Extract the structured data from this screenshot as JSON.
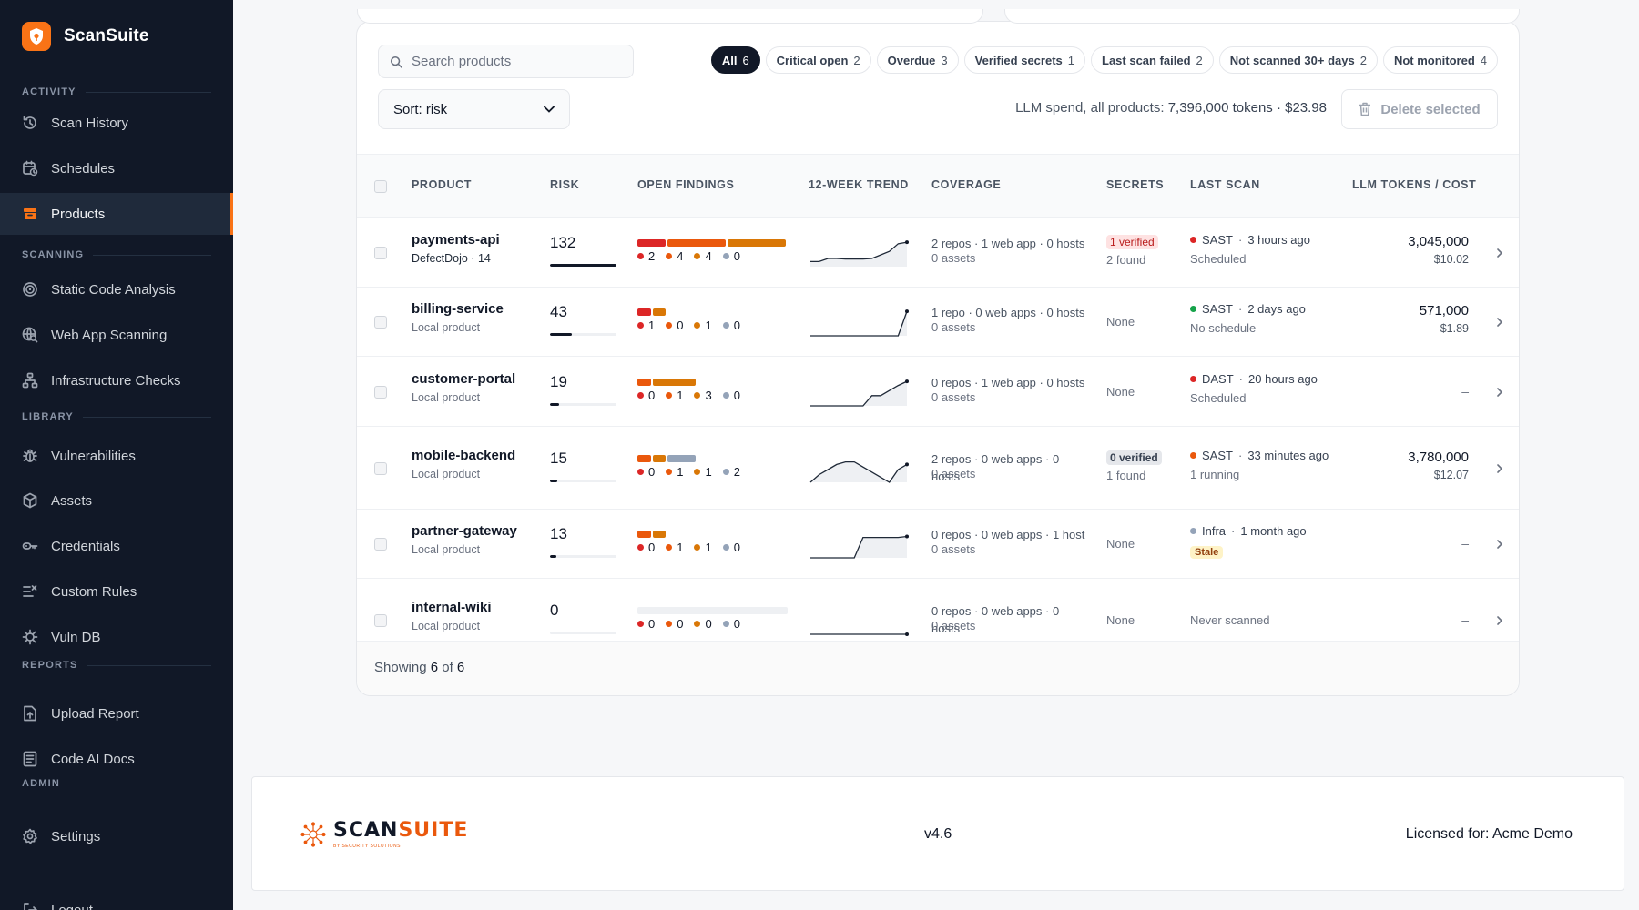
{
  "app": {
    "name": "ScanSuite",
    "accent": "#f97316"
  },
  "sidebar": {
    "sections": [
      {
        "label": "ACTIVITY"
      },
      {
        "label": "SCANNING"
      },
      {
        "label": "LIBRARY"
      },
      {
        "label": "REPORTS"
      },
      {
        "label": "ADMIN"
      }
    ],
    "items": [
      {
        "label": "Scan History",
        "icon": "history-icon"
      },
      {
        "label": "Schedules",
        "icon": "calendar-clock-icon"
      },
      {
        "label": "Products",
        "icon": "archive-box-icon",
        "active": true
      },
      {
        "label": "Static Code Analysis",
        "icon": "target-icon"
      },
      {
        "label": "Web App Scanning",
        "icon": "globe-search-icon"
      },
      {
        "label": "Infrastructure Checks",
        "icon": "network-icon"
      },
      {
        "label": "Vulnerabilities",
        "icon": "bug-icon"
      },
      {
        "label": "Assets",
        "icon": "cube-icon"
      },
      {
        "label": "Credentials",
        "icon": "key-icon"
      },
      {
        "label": "Custom Rules",
        "icon": "list-check-icon"
      },
      {
        "label": "Vuln DB",
        "icon": "bug-database-icon"
      },
      {
        "label": "Upload Report",
        "icon": "file-upload-icon"
      },
      {
        "label": "Code AI Docs",
        "icon": "document-icon"
      },
      {
        "label": "Settings",
        "icon": "gear-icon"
      },
      {
        "label": "Logout",
        "icon": "logout-icon"
      }
    ]
  },
  "toolbar": {
    "search_placeholder": "Search products",
    "sort_label": "Sort: risk",
    "filters": [
      {
        "label": "All",
        "count": "6",
        "active": true
      },
      {
        "label": "Critical open",
        "count": "2"
      },
      {
        "label": "Overdue",
        "count": "3"
      },
      {
        "label": "Verified secrets",
        "count": "1"
      },
      {
        "label": "Last scan failed",
        "count": "2"
      },
      {
        "label": "Not scanned 30+ days",
        "count": "2"
      },
      {
        "label": "Not monitored",
        "count": "4"
      }
    ],
    "spend_label": "LLM spend, all products:",
    "spend_value": "7,396,000 tokens · $23.98",
    "delete_label": "Delete selected"
  },
  "table": {
    "columns": [
      "PRODUCT",
      "RISK",
      "OPEN FINDINGS",
      "12-WEEK TREND",
      "COVERAGE",
      "SECRETS",
      "LAST SCAN",
      "LLM TOKENS / COST"
    ],
    "severity_colors": {
      "critical": "#dc2626",
      "high": "#ea580c",
      "medium": "#d97706",
      "low": "#94a3b8"
    },
    "rows": [
      {
        "name": "payments-api",
        "source": "DefectDojo · 14",
        "risk": "132",
        "risk_fraction": 1.0,
        "findings": {
          "critical": "2",
          "high": "4",
          "medium": "4",
          "low": "0"
        },
        "trend": [
          1,
          1,
          1.6,
          1.6,
          1.5,
          1.5,
          1.5,
          1.6,
          2.3,
          3,
          4.5,
          4.8
        ],
        "coverage": "2 repos · 1 web app · 0 hosts",
        "assets": "0 assets",
        "secrets_badge": "1 verified",
        "secrets_tone": "critical",
        "secrets_sub": "2 found",
        "scan_type": "SAST",
        "scan_time": "3 hours ago",
        "scan_status_color": "#dc2626",
        "scan_sub": "Scheduled",
        "tokens": "3,045,000",
        "cost": "$10.02"
      },
      {
        "name": "billing-service",
        "source": "Local product",
        "risk": "43",
        "risk_fraction": 0.33,
        "findings": {
          "critical": "1",
          "high": "0",
          "medium": "1",
          "low": "0"
        },
        "trend": [
          0,
          0,
          0,
          0,
          0,
          0,
          0,
          0,
          0,
          0,
          0,
          4.8
        ],
        "coverage": "1 repo · 0 web apps · 0 hosts",
        "assets": "0 assets",
        "secrets_none": "None",
        "scan_type": "SAST",
        "scan_time": "2 days ago",
        "scan_status_color": "#16a34a",
        "scan_sub": "No schedule",
        "tokens": "571,000",
        "cost": "$1.89"
      },
      {
        "name": "customer-portal",
        "source": "Local product",
        "risk": "19",
        "risk_fraction": 0.14,
        "findings": {
          "critical": "0",
          "high": "1",
          "medium": "3",
          "low": "0"
        },
        "trend": [
          0,
          0,
          0,
          0,
          0,
          0,
          0,
          2,
          2,
          3,
          4,
          4.8
        ],
        "coverage": "0 repos · 1 web app · 0 hosts",
        "assets": "0 assets",
        "secrets_none": "None",
        "scan_type": "DAST",
        "scan_time": "20 hours ago",
        "scan_status_color": "#dc2626",
        "scan_sub": "Scheduled",
        "tokens_dash": "–"
      },
      {
        "name": "mobile-backend",
        "source": "Local product",
        "risk": "15",
        "risk_fraction": 0.11,
        "findings": {
          "critical": "0",
          "high": "1",
          "medium": "1",
          "low": "2"
        },
        "trend": [
          0,
          1.5,
          2.5,
          3.5,
          4,
          4,
          3,
          2,
          1,
          0,
          2.5,
          3.5
        ],
        "coverage": "2 repos · 0 web apps · 0 hosts",
        "assets": "0 assets",
        "secrets_badge": "0 verified",
        "secrets_tone": "neutral",
        "secrets_sub": "1 found",
        "scan_type": "SAST",
        "scan_time": "33 minutes ago",
        "scan_status_color": "#ea580c",
        "scan_sub": "1 running",
        "tokens": "3,780,000",
        "cost": "$12.07"
      },
      {
        "name": "partner-gateway",
        "source": "Local product",
        "risk": "13",
        "risk_fraction": 0.1,
        "findings": {
          "critical": "0",
          "high": "1",
          "medium": "1",
          "low": "0"
        },
        "trend": [
          0,
          0,
          0,
          0,
          0,
          0,
          4,
          4,
          4,
          4,
          4,
          4.2
        ],
        "coverage": "0 repos · 0 web apps · 1 host",
        "assets": "0 assets",
        "secrets_none": "None",
        "scan_type": "Infra",
        "scan_time": "1 month ago",
        "scan_status_color": "#94a3b8",
        "scan_stale": "Stale",
        "tokens_dash": "–"
      },
      {
        "name": "internal-wiki",
        "source": "Local product",
        "risk": "0",
        "risk_fraction": 0,
        "findings": {
          "critical": "0",
          "high": "0",
          "medium": "0",
          "low": "0"
        },
        "trend": [
          0,
          0,
          0,
          0,
          0,
          0,
          0,
          0,
          0,
          0,
          0,
          0
        ],
        "coverage": "0 repos · 0 web apps · 0 hosts",
        "assets": "0 assets",
        "secrets_none": "None",
        "scan_never": "Never scanned",
        "tokens_dash": "–"
      }
    ],
    "footer_prefix": "Showing",
    "footer_shown": "6",
    "footer_of": "of",
    "footer_total": "6"
  },
  "footer": {
    "logo_text_main": "SCAN",
    "logo_text_accent": "SUITE",
    "logo_tagline": "BY SECURITY SOLUTIONS",
    "version": "v4.6",
    "license": "Licensed for: Acme Demo"
  }
}
